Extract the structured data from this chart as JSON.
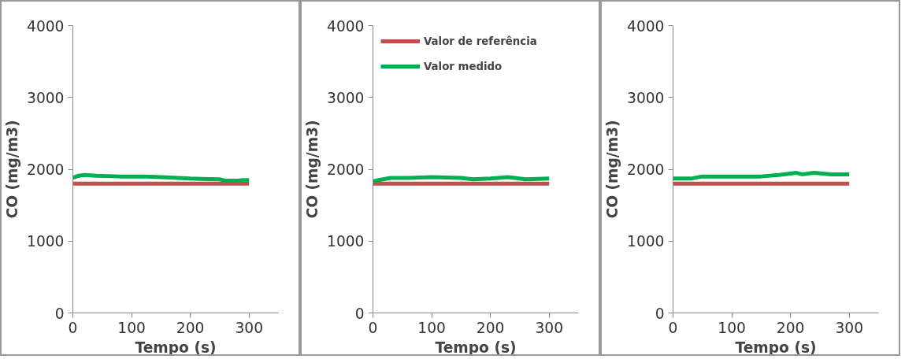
{
  "chart_data": [
    {
      "type": "line",
      "xlabel": "Tempo (s)",
      "ylabel": "CO (mg/m3)",
      "xlim": [
        0,
        350
      ],
      "xticks": [
        0,
        100,
        200,
        300
      ],
      "ylim": [
        0,
        4000
      ],
      "yticks": [
        0,
        1000,
        2000,
        3000,
        4000
      ],
      "grid": false,
      "legend": false,
      "series": [
        {
          "color": "#c0504d",
          "x": [
            0,
            300
          ],
          "values": [
            1800,
            1800
          ]
        },
        {
          "color": "#00b050",
          "x": [
            0,
            10,
            20,
            40,
            80,
            120,
            150,
            200,
            250,
            260,
            280,
            290,
            300
          ],
          "values": [
            1880,
            1910,
            1920,
            1910,
            1900,
            1900,
            1890,
            1870,
            1860,
            1840,
            1840,
            1850,
            1850
          ]
        }
      ]
    },
    {
      "type": "line",
      "xlabel": "Tempo (s)",
      "ylabel": "CO (mg/m3)",
      "xlim": [
        0,
        350
      ],
      "xticks": [
        0,
        100,
        200,
        300
      ],
      "ylim": [
        0,
        4000
      ],
      "yticks": [
        0,
        1000,
        2000,
        3000,
        4000
      ],
      "grid": false,
      "legend": "top left",
      "series": [
        {
          "name": "Valor de referência",
          "color": "#c0504d",
          "x": [
            0,
            300
          ],
          "values": [
            1800,
            1800
          ]
        },
        {
          "name": "Valor medido",
          "color": "#00b050",
          "x": [
            0,
            10,
            30,
            60,
            100,
            150,
            170,
            200,
            230,
            260,
            300
          ],
          "values": [
            1830,
            1850,
            1880,
            1880,
            1890,
            1880,
            1860,
            1870,
            1890,
            1860,
            1870
          ]
        }
      ]
    },
    {
      "type": "line",
      "xlabel": "Tempo (s)",
      "ylabel": "CO (mg/m3)",
      "xlim": [
        0,
        350
      ],
      "xticks": [
        0,
        100,
        200,
        300
      ],
      "ylim": [
        0,
        4000
      ],
      "yticks": [
        0,
        1000,
        2000,
        3000,
        4000
      ],
      "grid": false,
      "legend": false,
      "series": [
        {
          "color": "#c0504d",
          "x": [
            0,
            300
          ],
          "values": [
            1800,
            1800
          ]
        },
        {
          "color": "#00b050",
          "x": [
            0,
            30,
            50,
            100,
            150,
            180,
            210,
            220,
            240,
            270,
            300
          ],
          "values": [
            1870,
            1870,
            1900,
            1900,
            1900,
            1920,
            1950,
            1930,
            1950,
            1930,
            1930
          ]
        }
      ]
    }
  ]
}
